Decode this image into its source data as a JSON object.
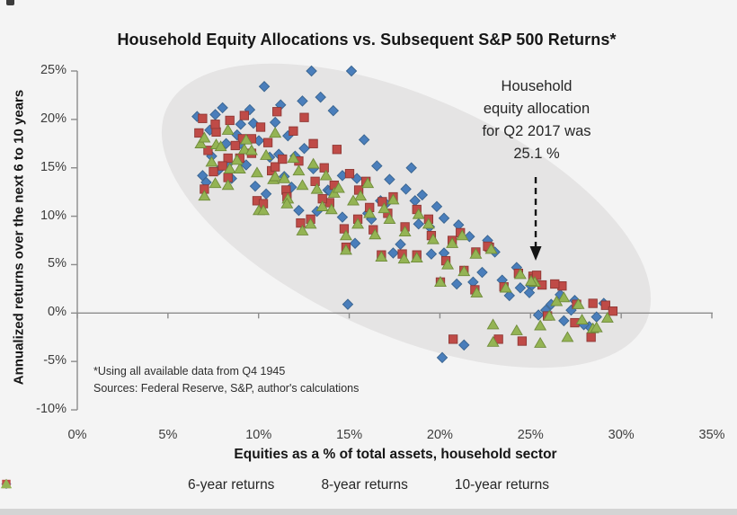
{
  "title": "Household Equity Allocations vs. Subsequent S&P 500 Returns*",
  "y_axis": {
    "label": "Annualized returns over the next 6 to 10 years",
    "ticks": [
      "25%",
      "20%",
      "15%",
      "10%",
      "5%",
      "0%",
      "-5%",
      "-10%"
    ]
  },
  "x_axis": {
    "label": "Equities as a % of total assets, household sector",
    "ticks": [
      "0%",
      "5%",
      "10%",
      "15%",
      "20%",
      "25%",
      "30%",
      "35%"
    ]
  },
  "annotation": {
    "lines": [
      "Household",
      "equity allocation",
      "for Q2 2017 was",
      "25.1 %"
    ]
  },
  "footnote": {
    "line1": "*Using all available data from Q4 1945",
    "line2": "Sources: Federal Reserve, S&P, author's calculations"
  },
  "legend": [
    {
      "label": "6-year returns",
      "shape": "diamond",
      "color": "#4a7ebb"
    },
    {
      "label": "8-year returns",
      "shape": "square",
      "color": "#bf4b47"
    },
    {
      "label": "10-year returns",
      "shape": "triangle",
      "color": "#94b454"
    }
  ],
  "colors": {
    "background": "#f4f4f4",
    "highlight_ellipse": "#e5e4e4",
    "axis": "#8c8c8c",
    "blue": "#4a7ebb",
    "blue_edge": "#39648f",
    "red": "#bf4b47",
    "red_edge": "#8f3835",
    "green": "#94b454",
    "green_edge": "#6f8b3a",
    "arrow": "#141414"
  },
  "chart_data": {
    "type": "scatter",
    "title": "Household Equity Allocations vs. Subsequent S&P 500 Returns*",
    "xlabel": "Equities as a % of total assets, household sector",
    "ylabel": "Annualized returns over the next 6 to 10 years",
    "xlim": [
      0,
      35
    ],
    "ylim": [
      -10,
      25
    ],
    "x_unit": "%",
    "y_unit": "%",
    "grid": false,
    "legend_position": "bottom",
    "annotation_text": "Household equity allocation for Q2 2017 was 25.1 %",
    "annotation_target_xy": [
      25.1,
      3.5
    ],
    "highlight_ellipse": {
      "present": true,
      "note": "gray ellipse enclosing point cloud"
    },
    "series": [
      {
        "name": "6-year returns",
        "marker": "diamond",
        "color": "#4a7ebb",
        "points": [
          [
            6.6,
            20.3
          ],
          [
            7.4,
            16.2
          ],
          [
            8.2,
            17.5
          ],
          [
            9,
            19.5
          ],
          [
            9.8,
            13.1
          ],
          [
            10.6,
            16.1
          ],
          [
            11.4,
            14.1
          ],
          [
            12.2,
            10.6
          ],
          [
            13,
            14.9
          ],
          [
            13.8,
            12.7
          ],
          [
            14.6,
            9.9
          ],
          [
            15.4,
            13.9
          ],
          [
            16.2,
            9.7
          ],
          [
            17,
            11.3
          ],
          [
            17.8,
            7.1
          ],
          [
            18.6,
            11.6
          ],
          [
            19.4,
            8.9
          ],
          [
            20.2,
            6.2
          ],
          [
            21,
            9.1
          ],
          [
            21.8,
            3.2
          ],
          [
            22.6,
            7.5
          ],
          [
            23.4,
            3.4
          ],
          [
            24.2,
            4.7
          ],
          [
            25,
            2.8
          ],
          [
            25.8,
            0.3
          ],
          [
            26.6,
            1.9
          ],
          [
            27.4,
            1.3
          ],
          [
            28.2,
            -1.4
          ],
          [
            29,
            1
          ],
          [
            6.9,
            14.2
          ],
          [
            7.6,
            20.5
          ],
          [
            8.3,
            15.4
          ],
          [
            9,
            17.5
          ],
          [
            9.7,
            19.6
          ],
          [
            10.4,
            12.3
          ],
          [
            11.1,
            16.4
          ],
          [
            11.8,
            13
          ],
          [
            12.5,
            17
          ],
          [
            13.2,
            10.5
          ],
          [
            13.9,
            12.6
          ],
          [
            14.6,
            14.2
          ],
          [
            15.3,
            7.2
          ],
          [
            16,
            10.3
          ],
          [
            16.7,
            11.6
          ],
          [
            17.4,
            6.2
          ],
          [
            18.1,
            12.8
          ],
          [
            18.8,
            9.2
          ],
          [
            19.5,
            6.1
          ],
          [
            20.2,
            9.8
          ],
          [
            20.9,
            3
          ],
          [
            21.6,
            7.9
          ],
          [
            22.3,
            4.2
          ],
          [
            23,
            6.3
          ],
          [
            7.1,
            13.5
          ],
          [
            7.3,
            18.9
          ],
          [
            7.8,
            14.8
          ],
          [
            8,
            21.2
          ],
          [
            8.5,
            13.9
          ],
          [
            8.8,
            18.4
          ],
          [
            9.3,
            15.3
          ],
          [
            9.5,
            21
          ],
          [
            10,
            17.8
          ],
          [
            10.3,
            23.4
          ],
          [
            10.9,
            19.7
          ],
          [
            11.2,
            21.5
          ],
          [
            11.6,
            18.3
          ],
          [
            12,
            16.2
          ],
          [
            12.4,
            21.9
          ],
          [
            12.9,
            25
          ],
          [
            13.4,
            22.3
          ],
          [
            14.1,
            20.9
          ],
          [
            15.1,
            25
          ],
          [
            15.8,
            17.9
          ],
          [
            16.5,
            15.2
          ],
          [
            17.2,
            13.8
          ],
          [
            18.4,
            15
          ],
          [
            19,
            12.2
          ],
          [
            19.8,
            11
          ],
          [
            14.9,
            0.9
          ],
          [
            20.1,
            -4.6
          ],
          [
            21.3,
            -3.3
          ],
          [
            23.8,
            1.8
          ],
          [
            24.4,
            2.6
          ],
          [
            24.9,
            2.1
          ],
          [
            25.4,
            -0.2
          ],
          [
            26.1,
            0.9
          ],
          [
            26.8,
            -0.8
          ],
          [
            27.2,
            0.3
          ],
          [
            27.9,
            -1.2
          ],
          [
            28.6,
            -0.4
          ]
        ]
      },
      {
        "name": "8-year returns",
        "marker": "square",
        "color": "#bf4b47",
        "points": [
          [
            6.7,
            18.6
          ],
          [
            7.5,
            14.6
          ],
          [
            8.3,
            16
          ],
          [
            9.1,
            18
          ],
          [
            9.9,
            11.6
          ],
          [
            10.7,
            14.7
          ],
          [
            11.5,
            12.7
          ],
          [
            12.3,
            9.3
          ],
          [
            13.1,
            13.6
          ],
          [
            13.9,
            11.4
          ],
          [
            14.7,
            8.7
          ],
          [
            15.5,
            12.7
          ],
          [
            16.3,
            8.6
          ],
          [
            17.1,
            10.3
          ],
          [
            17.9,
            6.1
          ],
          [
            18.7,
            10.7
          ],
          [
            19.5,
            8
          ],
          [
            20.3,
            5.4
          ],
          [
            21.1,
            8.3
          ],
          [
            21.9,
            2.4
          ],
          [
            22.7,
            6.8
          ],
          [
            23.5,
            2.7
          ],
          [
            24.3,
            4.1
          ],
          [
            25.1,
            3.8
          ],
          [
            25.9,
            -0.3
          ],
          [
            26.7,
            2.8
          ],
          [
            27.5,
            0.9
          ],
          [
            28.3,
            -2.5
          ],
          [
            29.1,
            0.8
          ],
          [
            7,
            12.8
          ],
          [
            7.65,
            18.7
          ],
          [
            8.3,
            14
          ],
          [
            8.95,
            16
          ],
          [
            9.6,
            18
          ],
          [
            10.25,
            11.3
          ],
          [
            10.9,
            15.1
          ],
          [
            11.55,
            12
          ],
          [
            12.2,
            15.7
          ],
          [
            12.85,
            9.7
          ],
          [
            13.5,
            11.8
          ],
          [
            14.15,
            13.2
          ],
          [
            14.8,
            6.8
          ],
          [
            15.45,
            9.7
          ],
          [
            16.1,
            10.9
          ],
          [
            16.75,
            6
          ],
          [
            17.4,
            12
          ],
          [
            18.05,
            8.9
          ],
          [
            18.7,
            6
          ],
          [
            19.35,
            9.7
          ],
          [
            20,
            3.2
          ],
          [
            20.65,
            7.5
          ],
          [
            21.3,
            4.4
          ],
          [
            21.95,
            6.3
          ],
          [
            22.6,
            6.9
          ],
          [
            6.9,
            20.1
          ],
          [
            7.2,
            16.8
          ],
          [
            7.6,
            19.5
          ],
          [
            8,
            15.2
          ],
          [
            8.4,
            19.9
          ],
          [
            8.7,
            17.3
          ],
          [
            9.2,
            20.4
          ],
          [
            9.6,
            16.5
          ],
          [
            10.1,
            19.2
          ],
          [
            10.5,
            17.6
          ],
          [
            11,
            20.8
          ],
          [
            11.3,
            15.9
          ],
          [
            11.9,
            18.8
          ],
          [
            12.5,
            20.2
          ],
          [
            13,
            17.5
          ],
          [
            13.6,
            15
          ],
          [
            14.3,
            16.9
          ],
          [
            15,
            14.4
          ],
          [
            15.9,
            13.6
          ],
          [
            16.8,
            11.5
          ],
          [
            20.7,
            -2.7
          ],
          [
            23.2,
            -2.7
          ],
          [
            24.5,
            -2.9
          ],
          [
            25.1,
            3.5
          ],
          [
            25.3,
            3.9
          ],
          [
            25.6,
            2.9
          ],
          [
            26.3,
            3
          ],
          [
            27.4,
            -1
          ],
          [
            28.4,
            1
          ],
          [
            29.5,
            0.2
          ]
        ]
      },
      {
        "name": "10-year returns",
        "marker": "triangle",
        "color": "#94b454",
        "points": [
          [
            6.8,
            17.5
          ],
          [
            7.6,
            13.4
          ],
          [
            8.4,
            14.9
          ],
          [
            9.2,
            16.9
          ],
          [
            10,
            10.6
          ],
          [
            10.8,
            13.8
          ],
          [
            11.6,
            11.8
          ],
          [
            12.4,
            8.5
          ],
          [
            13.2,
            12.8
          ],
          [
            14,
            10.7
          ],
          [
            14.8,
            8
          ],
          [
            15.6,
            12.1
          ],
          [
            16.4,
            8.1
          ],
          [
            17.2,
            9.7
          ],
          [
            18,
            5.6
          ],
          [
            18.8,
            10.2
          ],
          [
            19.6,
            7.6
          ],
          [
            20.4,
            5
          ],
          [
            21.2,
            8
          ],
          [
            22,
            2.1
          ],
          [
            22.8,
            6.6
          ],
          [
            23.6,
            2.6
          ],
          [
            24.4,
            4
          ],
          [
            25.2,
            3.2
          ],
          [
            26,
            -0.3
          ],
          [
            26.8,
            1.6
          ],
          [
            27.6,
            0.9
          ],
          [
            28.4,
            -1.6
          ],
          [
            29.2,
            -0.5
          ],
          [
            7,
            12.1
          ],
          [
            7.65,
            17.4
          ],
          [
            8.3,
            13.2
          ],
          [
            8.95,
            14.9
          ],
          [
            9.6,
            16.8
          ],
          [
            10.25,
            10.6
          ],
          [
            10.9,
            14.1
          ],
          [
            11.55,
            11.3
          ],
          [
            12.2,
            14.7
          ],
          [
            12.85,
            9.2
          ],
          [
            13.5,
            11
          ],
          [
            14.15,
            12.4
          ],
          [
            14.8,
            6.5
          ],
          [
            15.45,
            9.2
          ],
          [
            16.1,
            10.3
          ],
          [
            16.75,
            5.8
          ],
          [
            17.4,
            11.7
          ],
          [
            18.05,
            8.4
          ],
          [
            18.7,
            5.7
          ],
          [
            19.35,
            9.2
          ],
          [
            20,
            3.2
          ],
          [
            20.65,
            7.2
          ],
          [
            21.3,
            4.3
          ],
          [
            21.95,
            6.1
          ],
          [
            7,
            18.1
          ],
          [
            7.4,
            15.6
          ],
          [
            7.9,
            17.2
          ],
          [
            8.3,
            18.9
          ],
          [
            8.8,
            15.8
          ],
          [
            9.3,
            17.9
          ],
          [
            9.9,
            14.5
          ],
          [
            10.4,
            16.3
          ],
          [
            10.9,
            18.6
          ],
          [
            11.4,
            13.9
          ],
          [
            11.9,
            16
          ],
          [
            12.4,
            13.2
          ],
          [
            13,
            15.4
          ],
          [
            13.7,
            14.2
          ],
          [
            14.4,
            12.9
          ],
          [
            15.2,
            11.6
          ],
          [
            16,
            13.4
          ],
          [
            16.9,
            10.8
          ],
          [
            22.9,
            -1.2
          ],
          [
            22.9,
            -3
          ],
          [
            24.2,
            -1.8
          ],
          [
            25,
            3.3
          ],
          [
            25.5,
            -3.1
          ],
          [
            25.5,
            -1.3
          ],
          [
            26.4,
            1.2
          ],
          [
            27,
            -2.5
          ],
          [
            27.8,
            -0.7
          ],
          [
            28.6,
            -1.5
          ]
        ]
      }
    ]
  }
}
